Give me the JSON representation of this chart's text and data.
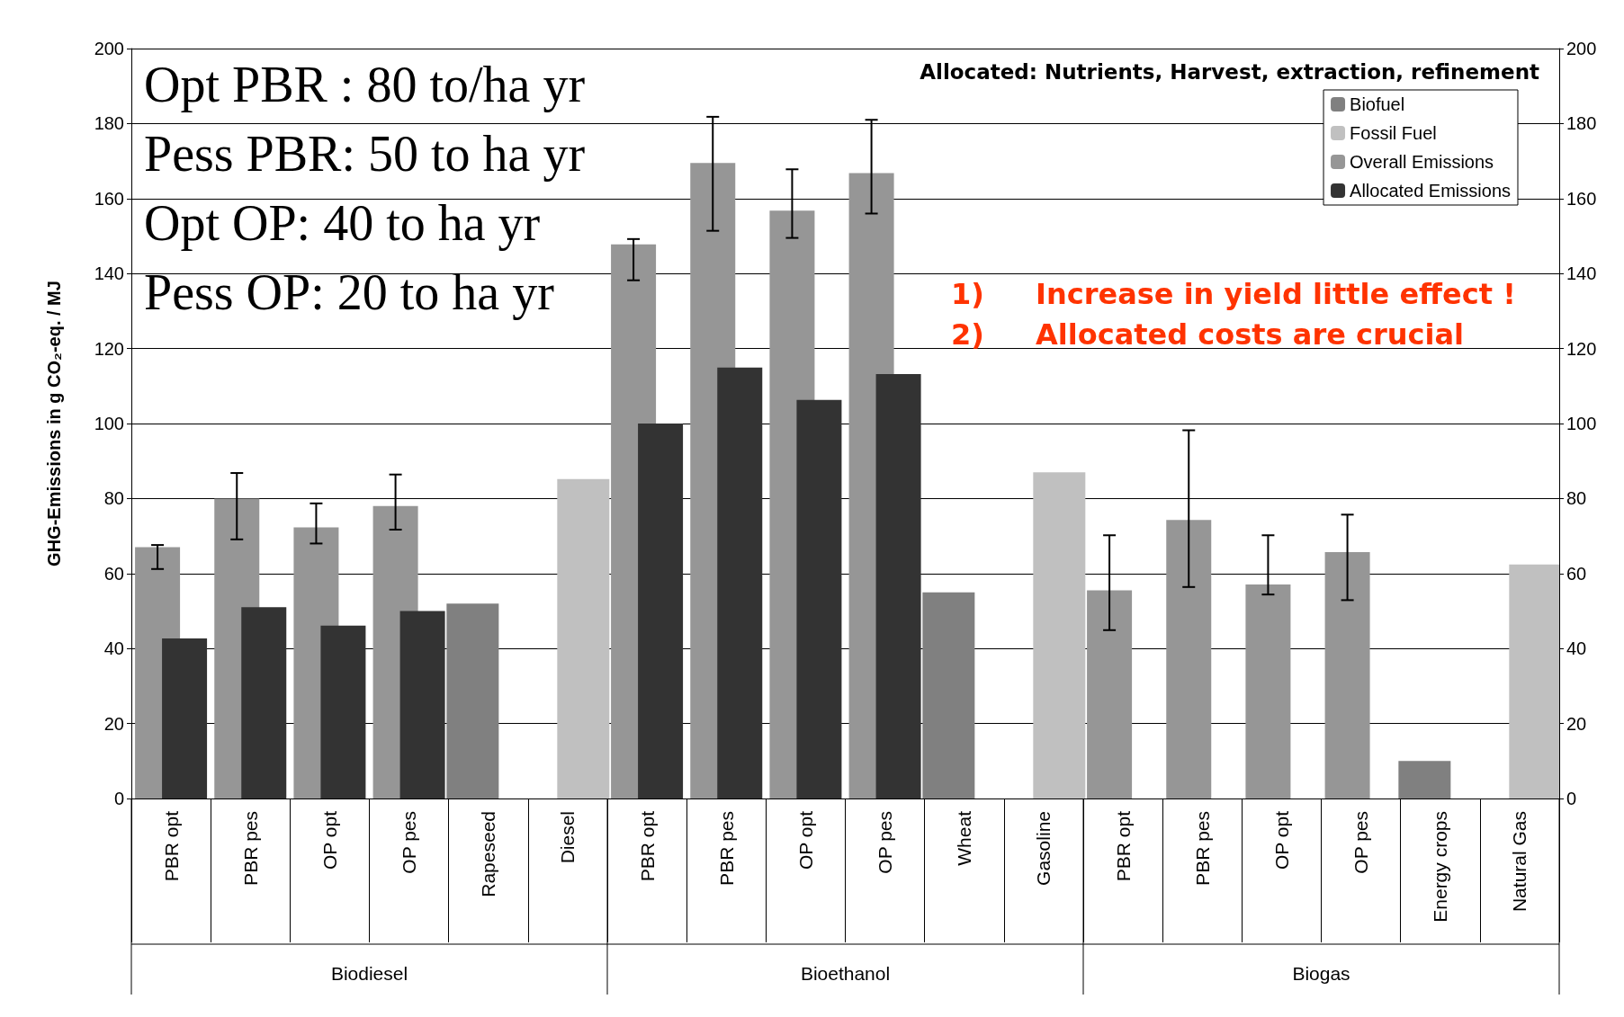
{
  "chart_data": {
    "type": "bar",
    "ylabel": "GHG-Emissions in g CO₂-eq. / MJ",
    "categories": [
      "PBR opt",
      "PBR pes",
      "OP opt",
      "OP pes",
      "Rapeseed",
      "Diesel",
      "PBR opt",
      "PBR pes",
      "OP opt",
      "OP pes",
      "Wheat",
      "Gasoline",
      "PBR opt",
      "PBR pes",
      "OP opt",
      "OP pes",
      "Energy crops",
      "Natural Gas"
    ],
    "series": [
      {
        "name": "Biofuel",
        "color": "#808080",
        "values": [
          null,
          null,
          null,
          null,
          52,
          null,
          null,
          null,
          null,
          null,
          55,
          null,
          null,
          null,
          null,
          null,
          10,
          null
        ]
      },
      {
        "name": "Fossil Fuel",
        "color": "#c0c0c0",
        "values": [
          null,
          null,
          null,
          null,
          null,
          85.2,
          null,
          null,
          null,
          null,
          null,
          87,
          null,
          null,
          null,
          null,
          null,
          62.4
        ]
      },
      {
        "name": "Overall Emissions",
        "color": "#969696",
        "values": [
          67,
          80,
          72.3,
          78,
          null,
          null,
          147.8,
          169.5,
          156.8,
          166.8,
          null,
          null,
          55.5,
          74.3,
          57.1,
          65.7,
          null,
          null
        ],
        "errors": [
          [
            61.2,
            67.6
          ],
          [
            69.1,
            86.8
          ],
          [
            68,
            78.7
          ],
          [
            71.7,
            86.4
          ],
          null,
          null,
          [
            138.2,
            149.2
          ],
          [
            151.4,
            181.8
          ],
          [
            149.5,
            167.8
          ],
          [
            156,
            181
          ],
          null,
          null,
          [
            44.9,
            70.2
          ],
          [
            56.4,
            98.2
          ],
          [
            54.4,
            70.2
          ],
          [
            52.9,
            75.7
          ],
          null,
          null
        ]
      },
      {
        "name": "Allocated Emissions",
        "color": "#333333",
        "values": [
          42.7,
          51,
          46.1,
          50,
          null,
          null,
          100,
          114.9,
          106.3,
          113.2,
          null,
          null,
          null,
          null,
          null,
          null,
          null,
          null
        ]
      }
    ],
    "ylim": [
      0,
      200
    ],
    "yticks": [
      0,
      20,
      40,
      60,
      80,
      100,
      120,
      140,
      160,
      180,
      200
    ],
    "y2lim": [
      0,
      200
    ],
    "y2ticks": [
      0,
      20,
      40,
      60,
      80,
      100,
      120,
      140,
      160,
      180,
      200
    ],
    "grid": "y",
    "legend": "top right",
    "annotations": [
      "Opt PBR : 80 to/ha yr",
      "Pess PBR: 50 to ha yr",
      "Opt OP: 40 to ha yr",
      "Pess OP: 20 to ha yr",
      "Allocated: Nutrients, Harvest, extraction, refinement",
      "1)",
      "Increase in yield little effect !",
      "2)",
      "Allocated costs are crucial",
      "Biodiesel",
      "Bioethanol",
      "Biogas"
    ]
  }
}
